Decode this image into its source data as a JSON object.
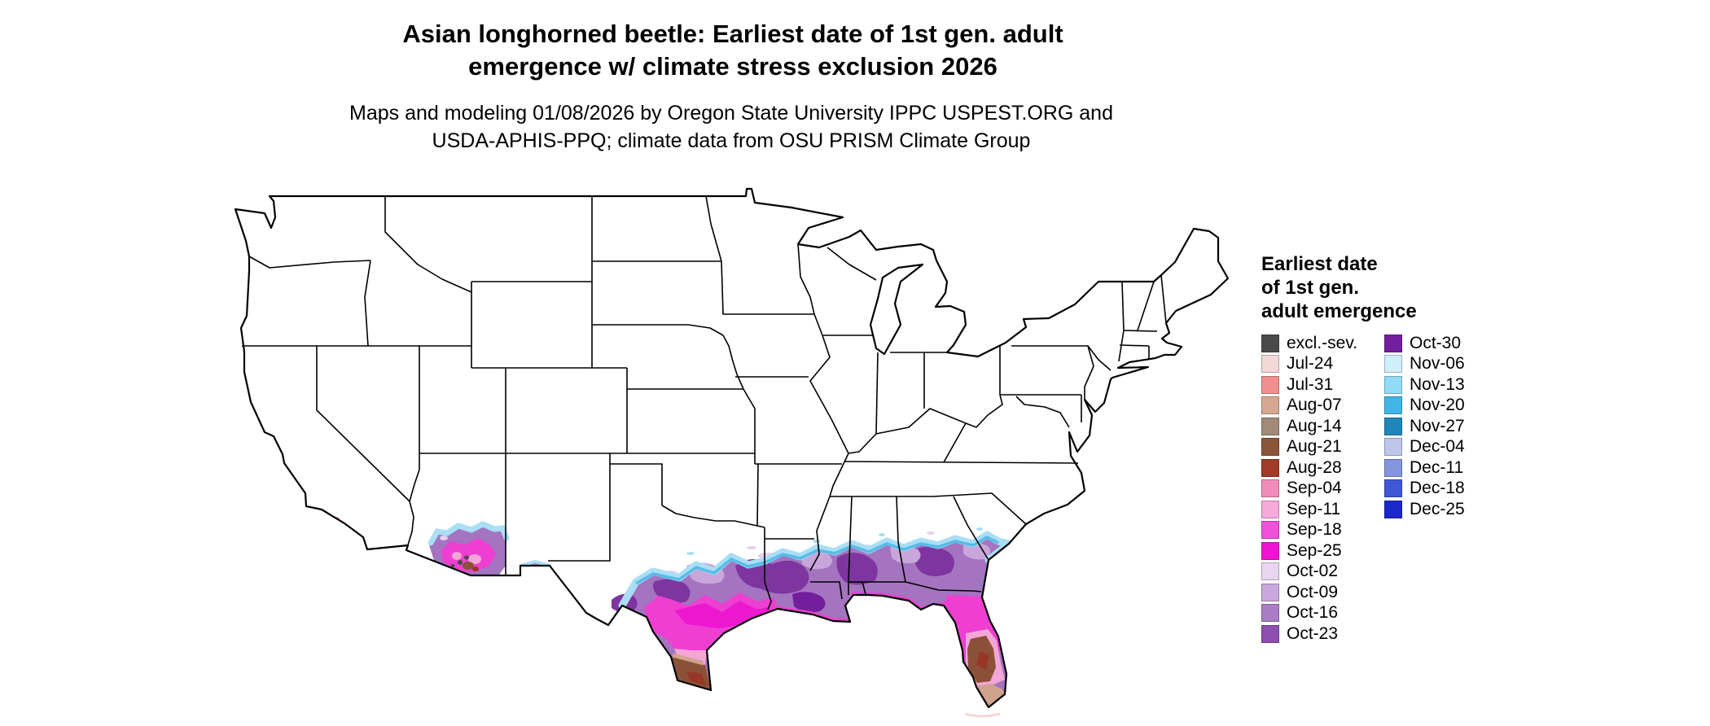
{
  "page": {
    "background": "#ffffff"
  },
  "title": {
    "line1": "Asian longhorned beetle: Earliest date of 1st gen. adult",
    "line2": "emergence w/ climate stress exclusion 2026"
  },
  "subtitle": {
    "line1": "Maps and modeling 01/08/2026 by Oregon State University IPPC USPEST.ORG and",
    "line2": "USDA-APHIS-PPQ; climate data from OSU PRISM Climate Group"
  },
  "legend": {
    "title_lines": [
      "Earliest date",
      "of 1st gen.",
      "adult emergence"
    ],
    "column1": [
      {
        "label": "excl.-sev.",
        "color": "#4a4a4a"
      },
      {
        "label": "Jul-24",
        "color": "#f3d8d8"
      },
      {
        "label": "Jul-31",
        "color": "#f0908e"
      },
      {
        "label": "Aug-07",
        "color": "#d6a791"
      },
      {
        "label": "Aug-14",
        "color": "#a18a78"
      },
      {
        "label": "Aug-21",
        "color": "#8a5538"
      },
      {
        "label": "Aug-28",
        "color": "#9f3b26"
      },
      {
        "label": "Sep-04",
        "color": "#f08cba"
      },
      {
        "label": "Sep-11",
        "color": "#f6aadc"
      },
      {
        "label": "Sep-18",
        "color": "#ef52d8"
      },
      {
        "label": "Sep-25",
        "color": "#ef14d3"
      },
      {
        "label": "Oct-02",
        "color": "#e8d6f0"
      },
      {
        "label": "Oct-09",
        "color": "#caa7dc"
      },
      {
        "label": "Oct-16",
        "color": "#a97cc6"
      },
      {
        "label": "Oct-23",
        "color": "#8d4fb0"
      }
    ],
    "column2": [
      {
        "label": "Oct-30",
        "color": "#711f9e"
      },
      {
        "label": "Nov-06",
        "color": "#cfeffb"
      },
      {
        "label": "Nov-13",
        "color": "#92dbf7"
      },
      {
        "label": "Nov-20",
        "color": "#41b6e6"
      },
      {
        "label": "Nov-27",
        "color": "#1f86bb"
      },
      {
        "label": "Dec-04",
        "color": "#bcc7ea"
      },
      {
        "label": "Dec-11",
        "color": "#8395de"
      },
      {
        "label": "Dec-18",
        "color": "#3f57d6"
      },
      {
        "label": "Dec-25",
        "color": "#1b27cb"
      }
    ]
  }
}
